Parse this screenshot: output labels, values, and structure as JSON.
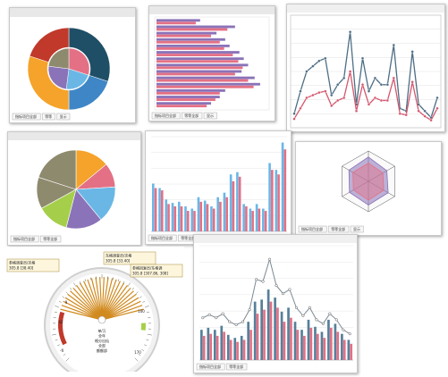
{
  "colors": {
    "orange": "#f5a32a",
    "blue": "#3f86c6",
    "navy": "#1f4f66",
    "red": "#c0392b",
    "pink": "#e47085",
    "purple": "#8a73b8",
    "lightblue": "#6ab7e6",
    "green": "#a5cf4a",
    "olive": "#8e8a6e",
    "steel": "#56809a",
    "line_dark": "#4d6e84",
    "line_pink": "#d5566d",
    "gauge_fan": "#d18a1e"
  },
  "panel_donut": {
    "footer_buttons": [
      "指标项目全部",
      "等等",
      "显示"
    ],
    "chart_data": {
      "type": "pie",
      "outer_values": [
        30,
        20,
        30,
        20
      ],
      "inner_values": [
        30,
        22,
        25,
        23
      ]
    }
  },
  "panel_hbar": {
    "footer_buttons": [
      "指标项目全部",
      "等等全部",
      "显示"
    ],
    "chart_data": {
      "type": "bar",
      "orientation": "horizontal",
      "series": [
        {
          "values": [
            40,
            72,
            55,
            63,
            67,
            76,
            80,
            84,
            78,
            90,
            95,
            63,
            58,
            50
          ]
        },
        {
          "values": [
            36,
            65,
            50,
            58,
            62,
            70,
            75,
            79,
            72,
            84,
            89,
            58,
            54,
            46
          ]
        }
      ]
    }
  },
  "panel_line_top": {
    "chart_data": {
      "type": "line",
      "series": [
        {
          "values": [
            8,
            25,
            40,
            44,
            48,
            50,
            22,
            30,
            35,
            70,
            15,
            50,
            25,
            35,
            30,
            30,
            60,
            12,
            10,
            55,
            15,
            10,
            5,
            20
          ]
        },
        {
          "values": [
            4,
            12,
            20,
            22,
            24,
            25,
            14,
            18,
            20,
            40,
            10,
            30,
            15,
            20,
            18,
            18,
            35,
            8,
            7,
            32,
            10,
            6,
            3,
            12
          ]
        }
      ]
    }
  },
  "panel_pie": {
    "footer_buttons": [
      "指标项目全部",
      "等等全部"
    ],
    "chart_data": {
      "type": "pie",
      "values": [
        14,
        10,
        15,
        15,
        13,
        13,
        20
      ]
    }
  },
  "panel_vbar": {
    "footer_buttons": [
      "指标项目全部",
      "等等全部"
    ],
    "chart_data": {
      "type": "bar",
      "series": [
        {
          "values": [
            42,
            38,
            28,
            25,
            26,
            22,
            20,
            30,
            27,
            22,
            30,
            34,
            50,
            52,
            24,
            20,
            24,
            20,
            60,
            54,
            78
          ]
        },
        {
          "values": [
            38,
            36,
            24,
            22,
            22,
            18,
            18,
            26,
            24,
            20,
            26,
            30,
            44,
            48,
            22,
            18,
            20,
            18,
            54,
            50,
            72
          ]
        }
      ]
    }
  },
  "panel_radar": {
    "footer_buttons": [
      "指标项目全部",
      "等等全部",
      "显示"
    ],
    "chart_data": {
      "type": "radar",
      "series": [
        {
          "values": [
            80,
            70,
            75,
            78,
            72,
            74
          ]
        },
        {
          "values": [
            60,
            55,
            58,
            62,
            57,
            59
          ]
        }
      ]
    }
  },
  "panel_gauge": {
    "callouts": [
      {
        "lines": [
          "参格调查员/次格",
          "305.8 [38.40]"
        ]
      },
      {
        "lines": [
          "东格调查员/次格",
          "305.8 [33.40]"
        ]
      },
      {
        "lines": [
          "参格回复员/东格调",
          "305.8 [307.86, 308]"
        ]
      }
    ],
    "center_text": [
      "单/万",
      "全年",
      "格分出仙",
      "全部",
      "额额部"
    ],
    "scale_labels": [
      "0",
      "62",
      "9",
      "100",
      "170"
    ],
    "chart_data": {
      "type": "gauge"
    }
  },
  "panel_combo": {
    "footer_buttons": [
      "指标项目全部",
      "等等全部"
    ],
    "chart_data": {
      "type": "bar",
      "series": [
        {
          "values": [
            30,
            32,
            30,
            34,
            25,
            22,
            24,
            38,
            58,
            60,
            70,
            62,
            48,
            52,
            38,
            30,
            40,
            33,
            28,
            40,
            36,
            26,
            20
          ]
        },
        {
          "values": [
            24,
            26,
            24,
            28,
            20,
            18,
            20,
            30,
            46,
            50,
            58,
            52,
            38,
            42,
            30,
            24,
            32,
            26,
            22,
            32,
            28,
            20,
            16
          ]
        },
        {
          "values": [
            42,
            45,
            42,
            46,
            38,
            35,
            38,
            50,
            80,
            78,
            100,
            74,
            66,
            70,
            52,
            44,
            52,
            40,
            36,
            46,
            40,
            30,
            26
          ]
        }
      ]
    }
  }
}
